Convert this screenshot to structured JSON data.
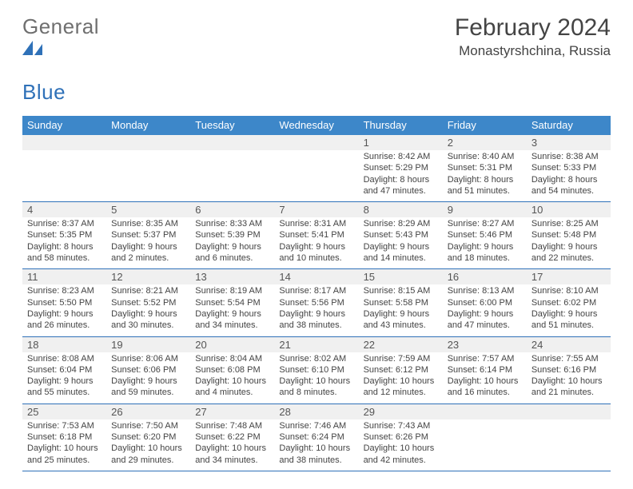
{
  "logo": {
    "general": "General",
    "blue": "Blue"
  },
  "title": "February 2024",
  "subtitle": "Monastyrshchina, Russia",
  "colors": {
    "header_bg": "#3d87c9",
    "header_text": "#ffffff",
    "rule": "#2f71b8",
    "daynum_bg": "#f0f0f0",
    "body_text": "#444444",
    "logo_gray": "#6f6f6f",
    "logo_blue": "#2f71b8"
  },
  "day_names": [
    "Sunday",
    "Monday",
    "Tuesday",
    "Wednesday",
    "Thursday",
    "Friday",
    "Saturday"
  ],
  "weeks": [
    [
      {
        "n": "",
        "sr": "",
        "ss": "",
        "dl": ""
      },
      {
        "n": "",
        "sr": "",
        "ss": "",
        "dl": ""
      },
      {
        "n": "",
        "sr": "",
        "ss": "",
        "dl": ""
      },
      {
        "n": "",
        "sr": "",
        "ss": "",
        "dl": ""
      },
      {
        "n": "1",
        "sr": "Sunrise: 8:42 AM",
        "ss": "Sunset: 5:29 PM",
        "dl": "Daylight: 8 hours and 47 minutes."
      },
      {
        "n": "2",
        "sr": "Sunrise: 8:40 AM",
        "ss": "Sunset: 5:31 PM",
        "dl": "Daylight: 8 hours and 51 minutes."
      },
      {
        "n": "3",
        "sr": "Sunrise: 8:38 AM",
        "ss": "Sunset: 5:33 PM",
        "dl": "Daylight: 8 hours and 54 minutes."
      }
    ],
    [
      {
        "n": "4",
        "sr": "Sunrise: 8:37 AM",
        "ss": "Sunset: 5:35 PM",
        "dl": "Daylight: 8 hours and 58 minutes."
      },
      {
        "n": "5",
        "sr": "Sunrise: 8:35 AM",
        "ss": "Sunset: 5:37 PM",
        "dl": "Daylight: 9 hours and 2 minutes."
      },
      {
        "n": "6",
        "sr": "Sunrise: 8:33 AM",
        "ss": "Sunset: 5:39 PM",
        "dl": "Daylight: 9 hours and 6 minutes."
      },
      {
        "n": "7",
        "sr": "Sunrise: 8:31 AM",
        "ss": "Sunset: 5:41 PM",
        "dl": "Daylight: 9 hours and 10 minutes."
      },
      {
        "n": "8",
        "sr": "Sunrise: 8:29 AM",
        "ss": "Sunset: 5:43 PM",
        "dl": "Daylight: 9 hours and 14 minutes."
      },
      {
        "n": "9",
        "sr": "Sunrise: 8:27 AM",
        "ss": "Sunset: 5:46 PM",
        "dl": "Daylight: 9 hours and 18 minutes."
      },
      {
        "n": "10",
        "sr": "Sunrise: 8:25 AM",
        "ss": "Sunset: 5:48 PM",
        "dl": "Daylight: 9 hours and 22 minutes."
      }
    ],
    [
      {
        "n": "11",
        "sr": "Sunrise: 8:23 AM",
        "ss": "Sunset: 5:50 PM",
        "dl": "Daylight: 9 hours and 26 minutes."
      },
      {
        "n": "12",
        "sr": "Sunrise: 8:21 AM",
        "ss": "Sunset: 5:52 PM",
        "dl": "Daylight: 9 hours and 30 minutes."
      },
      {
        "n": "13",
        "sr": "Sunrise: 8:19 AM",
        "ss": "Sunset: 5:54 PM",
        "dl": "Daylight: 9 hours and 34 minutes."
      },
      {
        "n": "14",
        "sr": "Sunrise: 8:17 AM",
        "ss": "Sunset: 5:56 PM",
        "dl": "Daylight: 9 hours and 38 minutes."
      },
      {
        "n": "15",
        "sr": "Sunrise: 8:15 AM",
        "ss": "Sunset: 5:58 PM",
        "dl": "Daylight: 9 hours and 43 minutes."
      },
      {
        "n": "16",
        "sr": "Sunrise: 8:13 AM",
        "ss": "Sunset: 6:00 PM",
        "dl": "Daylight: 9 hours and 47 minutes."
      },
      {
        "n": "17",
        "sr": "Sunrise: 8:10 AM",
        "ss": "Sunset: 6:02 PM",
        "dl": "Daylight: 9 hours and 51 minutes."
      }
    ],
    [
      {
        "n": "18",
        "sr": "Sunrise: 8:08 AM",
        "ss": "Sunset: 6:04 PM",
        "dl": "Daylight: 9 hours and 55 minutes."
      },
      {
        "n": "19",
        "sr": "Sunrise: 8:06 AM",
        "ss": "Sunset: 6:06 PM",
        "dl": "Daylight: 9 hours and 59 minutes."
      },
      {
        "n": "20",
        "sr": "Sunrise: 8:04 AM",
        "ss": "Sunset: 6:08 PM",
        "dl": "Daylight: 10 hours and 4 minutes."
      },
      {
        "n": "21",
        "sr": "Sunrise: 8:02 AM",
        "ss": "Sunset: 6:10 PM",
        "dl": "Daylight: 10 hours and 8 minutes."
      },
      {
        "n": "22",
        "sr": "Sunrise: 7:59 AM",
        "ss": "Sunset: 6:12 PM",
        "dl": "Daylight: 10 hours and 12 minutes."
      },
      {
        "n": "23",
        "sr": "Sunrise: 7:57 AM",
        "ss": "Sunset: 6:14 PM",
        "dl": "Daylight: 10 hours and 16 minutes."
      },
      {
        "n": "24",
        "sr": "Sunrise: 7:55 AM",
        "ss": "Sunset: 6:16 PM",
        "dl": "Daylight: 10 hours and 21 minutes."
      }
    ],
    [
      {
        "n": "25",
        "sr": "Sunrise: 7:53 AM",
        "ss": "Sunset: 6:18 PM",
        "dl": "Daylight: 10 hours and 25 minutes."
      },
      {
        "n": "26",
        "sr": "Sunrise: 7:50 AM",
        "ss": "Sunset: 6:20 PM",
        "dl": "Daylight: 10 hours and 29 minutes."
      },
      {
        "n": "27",
        "sr": "Sunrise: 7:48 AM",
        "ss": "Sunset: 6:22 PM",
        "dl": "Daylight: 10 hours and 34 minutes."
      },
      {
        "n": "28",
        "sr": "Sunrise: 7:46 AM",
        "ss": "Sunset: 6:24 PM",
        "dl": "Daylight: 10 hours and 38 minutes."
      },
      {
        "n": "29",
        "sr": "Sunrise: 7:43 AM",
        "ss": "Sunset: 6:26 PM",
        "dl": "Daylight: 10 hours and 42 minutes."
      },
      {
        "n": "",
        "sr": "",
        "ss": "",
        "dl": ""
      },
      {
        "n": "",
        "sr": "",
        "ss": "",
        "dl": ""
      }
    ]
  ]
}
